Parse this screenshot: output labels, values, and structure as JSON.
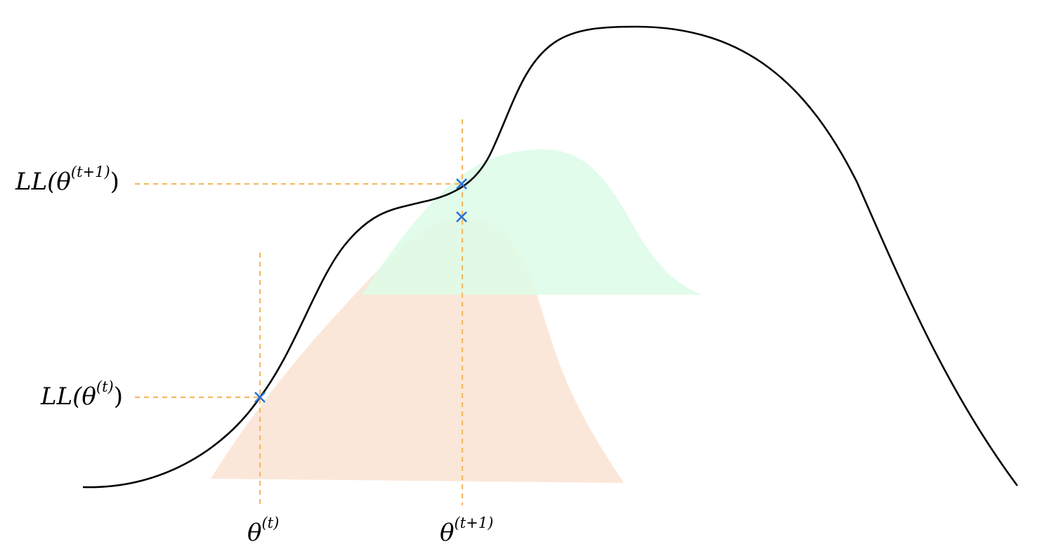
{
  "labels": {
    "ll_next_main": "LL(θ",
    "ll_next_sup": "(t+1)",
    "ll_next_close": ")",
    "ll_curr_main": "LL(θ",
    "ll_curr_sup": "(t)",
    "ll_curr_close": ")",
    "theta_curr_main": "θ",
    "theta_curr_sup": "(t)",
    "theta_next_main": "θ",
    "theta_next_sup": "(t+1)"
  },
  "colors": {
    "curve": "#000000",
    "guide_lines": "#f5b961",
    "markers": "#2b6fd6",
    "lower_bound_t": "#fbe7d9",
    "lower_bound_t_plus_1": "#dcfbe6"
  },
  "markers": [
    "cross-marker",
    "cross-marker",
    "cross-marker"
  ]
}
